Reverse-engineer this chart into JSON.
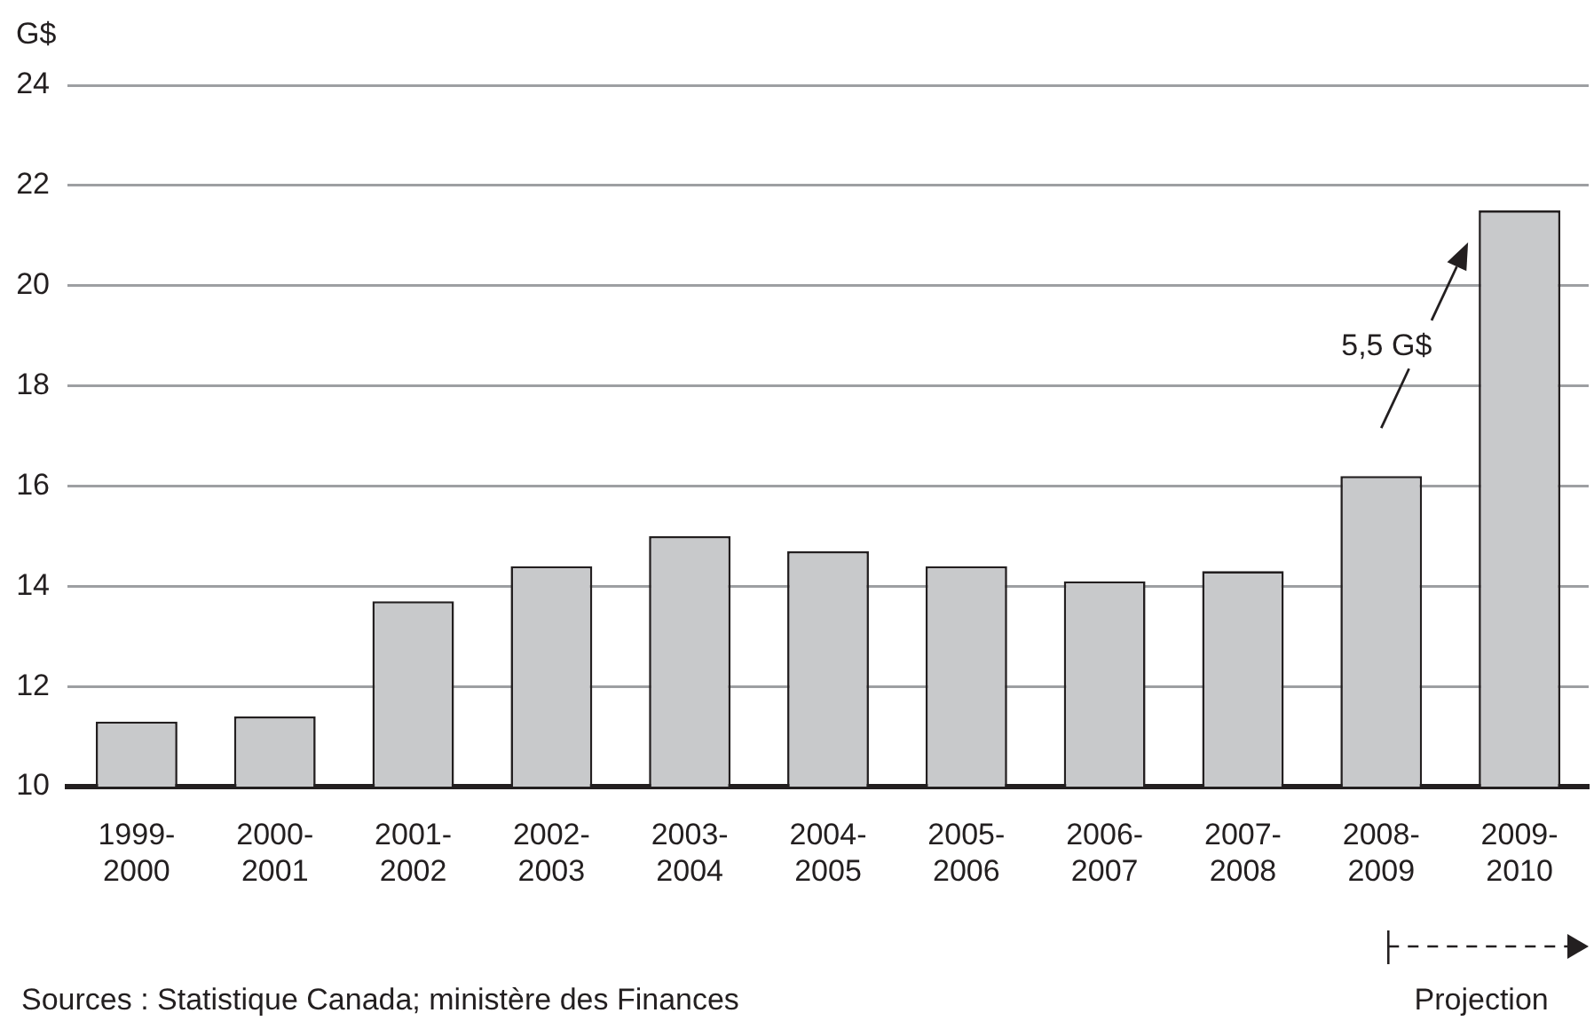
{
  "chart_data": {
    "type": "bar",
    "ylabel": "G$",
    "categories": [
      "1999-2000",
      "2000-2001",
      "2001-2002",
      "2002-2003",
      "2003-2004",
      "2004-2005",
      "2005-2006",
      "2006-2007",
      "2007-2008",
      "2008-2009",
      "2009-2010"
    ],
    "values": [
      11.3,
      11.4,
      13.7,
      14.4,
      15.0,
      14.7,
      14.4,
      14.1,
      14.3,
      16.2,
      21.5
    ],
    "color": "#c8c9cb",
    "ylim": [
      10,
      24
    ],
    "yticks": [
      10,
      12,
      14,
      16,
      18,
      20,
      22,
      24
    ],
    "grid": "y",
    "annotations": [
      "5,5 G$",
      "Projection",
      "Sources : Statistique Canada; ministère des Finances"
    ]
  }
}
